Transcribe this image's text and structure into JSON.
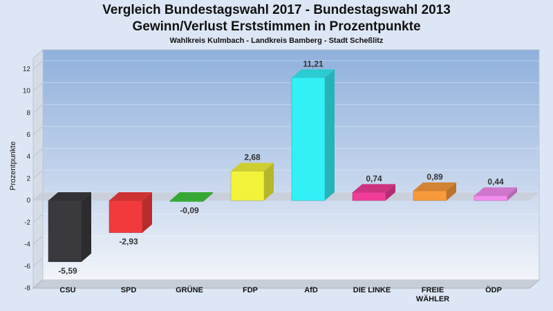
{
  "chart_data": {
    "type": "bar",
    "title": "Vergleich Bundestagswahl 2017 - Bundestagswahl 2013",
    "title2": "Gewinn/Verlust Erststimmen in Prozentpunkte",
    "subtitle": "Wahlkreis Kulmbach - Landkreis Bamberg - Stadt Scheßlitz",
    "ylabel": "Prozentpunkte",
    "ylim": [
      -8,
      13
    ],
    "yticks": [
      -8,
      -6,
      -4,
      -2,
      0,
      2,
      4,
      6,
      8,
      10,
      12
    ],
    "grid": true,
    "categories": [
      {
        "lines": [
          "CSU"
        ]
      },
      {
        "lines": [
          "SPD"
        ]
      },
      {
        "lines": [
          "GRÜNE"
        ]
      },
      {
        "lines": [
          "FDP"
        ]
      },
      {
        "lines": [
          "AfD"
        ]
      },
      {
        "lines": [
          "DIE LINKE"
        ]
      },
      {
        "lines": [
          "FREIE",
          "WÄHLER"
        ]
      },
      {
        "lines": [
          "ÖDP"
        ]
      }
    ],
    "values": [
      -5.59,
      -2.93,
      -0.09,
      2.68,
      11.21,
      0.74,
      0.89,
      0.44
    ],
    "value_labels": [
      "-5,59",
      "-2,93",
      "-0,09",
      "2,68",
      "11,21",
      "0,74",
      "0,89",
      "0,44"
    ],
    "colors": [
      "#3a3a3e",
      "#f23a3c",
      "#3ec63c",
      "#f2f23a",
      "#32f0f6",
      "#f03c98",
      "#f79a3c",
      "#f48cf0"
    ]
  }
}
